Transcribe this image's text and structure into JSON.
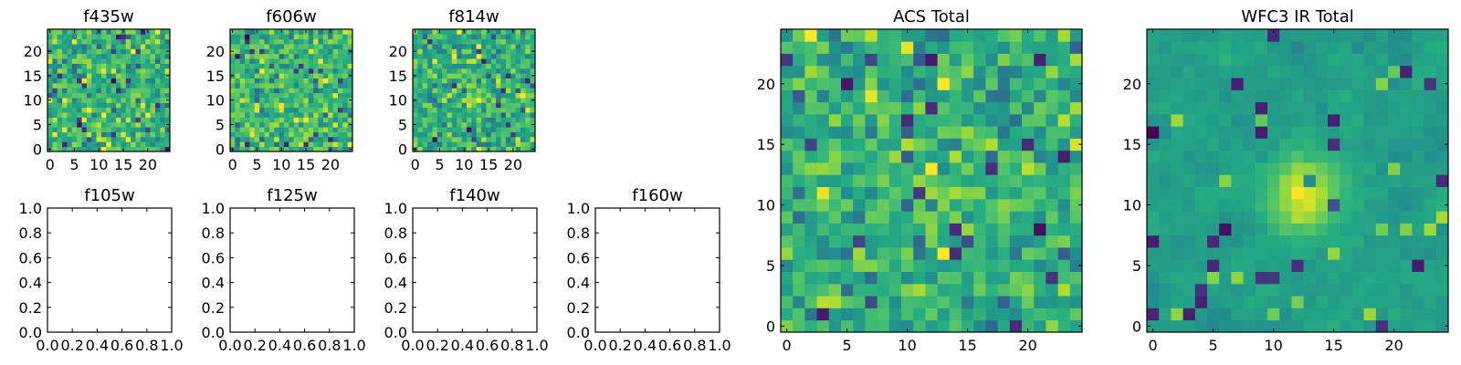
{
  "chart_data": [
    {
      "type": "heatmap",
      "title": "f435w",
      "colormap": "viridis",
      "grid": false,
      "xlim": [
        -0.5,
        24.5
      ],
      "ylim": [
        -0.5,
        24.5
      ],
      "xticks": [
        0,
        5,
        10,
        15,
        20
      ],
      "yticks": [
        0,
        5,
        10,
        15,
        20
      ],
      "rows": 25,
      "cols": 25,
      "seed": 11,
      "blob": 0.0,
      "noise": 0.12
    },
    {
      "type": "heatmap",
      "title": "f606w",
      "colormap": "viridis",
      "grid": false,
      "xlim": [
        -0.5,
        24.5
      ],
      "ylim": [
        -0.5,
        24.5
      ],
      "xticks": [
        0,
        5,
        10,
        15,
        20
      ],
      "yticks": [
        0,
        5,
        10,
        15,
        20
      ],
      "rows": 25,
      "cols": 25,
      "seed": 23,
      "blob": 0.0,
      "noise": 0.12
    },
    {
      "type": "heatmap",
      "title": "f814w",
      "colormap": "viridis",
      "grid": false,
      "xlim": [
        -0.5,
        24.5
      ],
      "ylim": [
        -0.5,
        24.5
      ],
      "xticks": [
        0,
        5,
        10,
        15,
        20
      ],
      "yticks": [
        0,
        5,
        10,
        15,
        20
      ],
      "rows": 25,
      "cols": 25,
      "seed": 37,
      "blob": 0.08,
      "noise": 0.12
    },
    {
      "type": "empty",
      "title": "f105w",
      "xlim": [
        0.0,
        1.0
      ],
      "ylim": [
        0.0,
        1.0
      ],
      "xticks": [
        "0.0",
        "0.2",
        "0.4",
        "0.6",
        "0.8",
        "1.0"
      ],
      "yticks": [
        "0.0",
        "0.2",
        "0.4",
        "0.6",
        "0.8",
        "1.0"
      ]
    },
    {
      "type": "empty",
      "title": "f125w",
      "xlim": [
        0.0,
        1.0
      ],
      "ylim": [
        0.0,
        1.0
      ],
      "xticks": [
        "0.0",
        "0.2",
        "0.4",
        "0.6",
        "0.8",
        "1.0"
      ],
      "yticks": [
        "0.0",
        "0.2",
        "0.4",
        "0.6",
        "0.8",
        "1.0"
      ]
    },
    {
      "type": "empty",
      "title": "f140w",
      "xlim": [
        0.0,
        1.0
      ],
      "ylim": [
        0.0,
        1.0
      ],
      "xticks": [
        "0.0",
        "0.2",
        "0.4",
        "0.6",
        "0.8",
        "1.0"
      ],
      "yticks": [
        "0.0",
        "0.2",
        "0.4",
        "0.6",
        "0.8",
        "1.0"
      ]
    },
    {
      "type": "empty",
      "title": "f160w",
      "xlim": [
        0.0,
        1.0
      ],
      "ylim": [
        0.0,
        1.0
      ],
      "xticks": [
        "0.0",
        "0.2",
        "0.4",
        "0.6",
        "0.8",
        "1.0"
      ],
      "yticks": [
        "0.0",
        "0.2",
        "0.4",
        "0.6",
        "0.8",
        "1.0"
      ]
    },
    {
      "type": "heatmap",
      "title": "ACS Total",
      "colormap": "viridis",
      "grid": false,
      "xlim": [
        -0.5,
        24.5
      ],
      "ylim": [
        -0.5,
        24.5
      ],
      "xticks": [
        0,
        5,
        10,
        15,
        20
      ],
      "yticks": [
        0,
        5,
        10,
        15,
        20
      ],
      "rows": 25,
      "cols": 25,
      "seed": 53,
      "blob": 0.1,
      "noise": 0.12
    },
    {
      "type": "heatmap",
      "title": "WFC3 IR Total",
      "colormap": "viridis",
      "grid": false,
      "xlim": [
        -0.5,
        24.5
      ],
      "ylim": [
        -0.5,
        24.5
      ],
      "xticks": [
        0,
        5,
        10,
        15,
        20
      ],
      "yticks": [
        0,
        5,
        10,
        15,
        20
      ],
      "rows": 25,
      "cols": 25,
      "seed": 71,
      "blob": 0.4,
      "noise": 0.06,
      "smooth": true
    }
  ]
}
